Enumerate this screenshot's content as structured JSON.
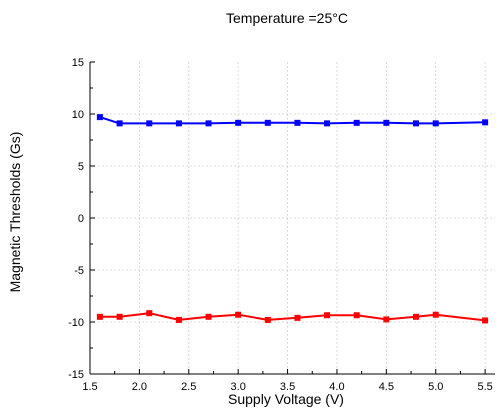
{
  "chart_data": {
    "type": "line",
    "title": "Temperature =25°C",
    "xlabel": "Supply Voltage (V)",
    "ylabel": "Magnetic Thresholds (Gs)",
    "xlim": [
      1.5,
      5.6
    ],
    "ylim": [
      -15,
      15
    ],
    "xticks": [
      "1.5",
      "2.0",
      "2.5",
      "3.0",
      "3.5",
      "4.0",
      "4.5",
      "5.0",
      "5.5"
    ],
    "yticks": [
      "15",
      "10",
      "5",
      "0",
      "-5",
      "-10",
      "-15"
    ],
    "grid": true,
    "x": [
      1.6,
      1.8,
      2.1,
      2.4,
      2.7,
      3.0,
      3.3,
      3.6,
      3.9,
      4.2,
      4.5,
      4.8,
      5.0,
      5.5
    ],
    "series": [
      {
        "color": "#0000ff",
        "values": [
          9.7,
          9.1,
          9.1,
          9.1,
          9.1,
          9.15,
          9.15,
          9.15,
          9.1,
          9.15,
          9.15,
          9.1,
          9.1,
          9.2
        ]
      },
      {
        "color": "#ff0000",
        "values": [
          -9.5,
          -9.5,
          -9.15,
          -9.8,
          -9.5,
          -9.3,
          -9.8,
          -9.6,
          -9.35,
          -9.35,
          -9.75,
          -9.5,
          -9.3,
          -9.85
        ]
      }
    ]
  }
}
